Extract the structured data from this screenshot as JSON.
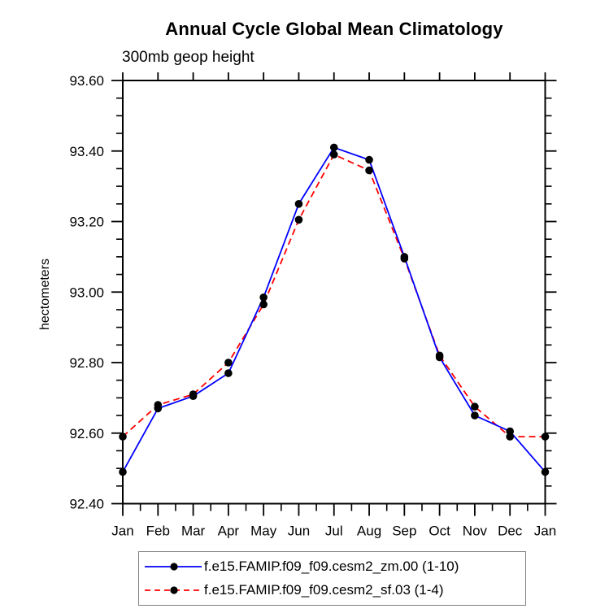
{
  "title": "Annual Cycle Global Mean Climatology",
  "subtitle": "300mb geop height",
  "ylabel": "hectometers",
  "colors": {
    "axis": "#000000",
    "marker": "#000000",
    "legend_border": "#808080",
    "series_blue": "#0000ff",
    "series_red": "#ff0000"
  },
  "chart_data": {
    "type": "line",
    "title": "Annual Cycle Global Mean Climatology",
    "subtitle": "300mb geop height",
    "ylabel": "hectometers",
    "xlabel": "",
    "grid": false,
    "legend_position": "bottom",
    "categories": [
      "Jan",
      "Feb",
      "Mar",
      "Apr",
      "May",
      "Jun",
      "Jul",
      "Aug",
      "Sep",
      "Oct",
      "Nov",
      "Dec",
      "Jan"
    ],
    "ylim": [
      92.4,
      93.6
    ],
    "yaxis": {
      "majors": [
        92.4,
        92.6,
        92.8,
        93.0,
        93.2,
        93.4,
        93.6
      ],
      "labels": [
        "92.40",
        "92.60",
        "92.80",
        "93.00",
        "93.20",
        "93.40",
        "93.60"
      ],
      "minor_step": 0.05
    },
    "xaxis": {
      "minor_ticks_between_months": true
    },
    "series": [
      {
        "name": "f.e15.FAMIP.f09_f09.cesm2_zm.00 (1-10)",
        "color": "#0000ff",
        "line_style": "solid",
        "marker": "circle",
        "marker_color": "#000000",
        "values": [
          92.49,
          92.67,
          92.705,
          92.77,
          92.985,
          93.25,
          93.41,
          93.375,
          93.1,
          92.815,
          92.65,
          92.605,
          92.49
        ]
      },
      {
        "name": "f.e15.FAMIP.f09_f09.cesm2_sf.03 (1-4)",
        "color": "#ff0000",
        "line_style": "dashed",
        "marker": "circle",
        "marker_color": "#000000",
        "values": [
          92.59,
          92.68,
          92.71,
          92.8,
          92.965,
          93.205,
          93.39,
          93.345,
          93.095,
          92.82,
          92.675,
          92.59,
          92.59
        ]
      }
    ]
  }
}
